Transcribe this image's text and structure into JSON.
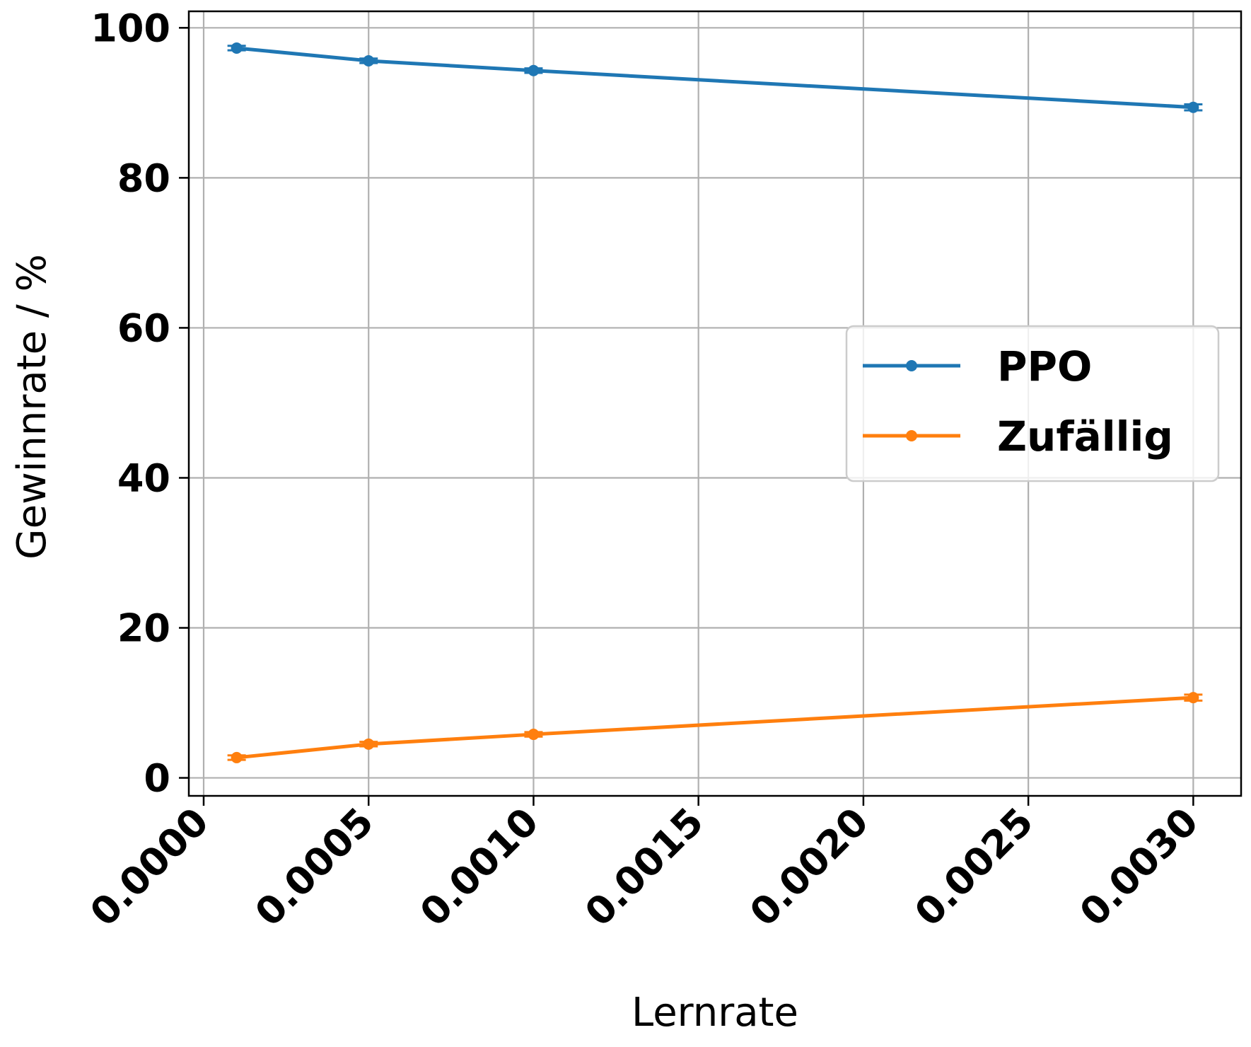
{
  "chart_data": {
    "type": "line",
    "xlabel": "Lernrate",
    "ylabel": "Gewinnrate / %",
    "xlim": [
      -4.5e-05,
      0.003145
    ],
    "ylim": [
      -2.4,
      102.2
    ],
    "x_ticks": [
      0.0,
      0.0005,
      0.001,
      0.0015,
      0.002,
      0.0025,
      0.003
    ],
    "x_tick_labels": [
      "0.0000",
      "0.0005",
      "0.0010",
      "0.0015",
      "0.0020",
      "0.0025",
      "0.0030"
    ],
    "y_ticks": [
      0,
      20,
      40,
      60,
      80,
      100
    ],
    "y_tick_labels": [
      "0",
      "20",
      "40",
      "60",
      "80",
      "100"
    ],
    "grid": true,
    "legend_position": "center-right",
    "x": [
      0.0001,
      0.0005,
      0.001,
      0.003
    ],
    "series": [
      {
        "name": "PPO",
        "color": "#1f77b4",
        "values": [
          97.3,
          95.6,
          94.3,
          89.4
        ],
        "errors": [
          0.3,
          0.3,
          0.3,
          0.4
        ]
      },
      {
        "name": "Zufällig",
        "color": "#ff7f0e",
        "values": [
          2.7,
          4.5,
          5.8,
          10.7
        ],
        "errors": [
          0.3,
          0.3,
          0.3,
          0.4
        ]
      }
    ]
  }
}
